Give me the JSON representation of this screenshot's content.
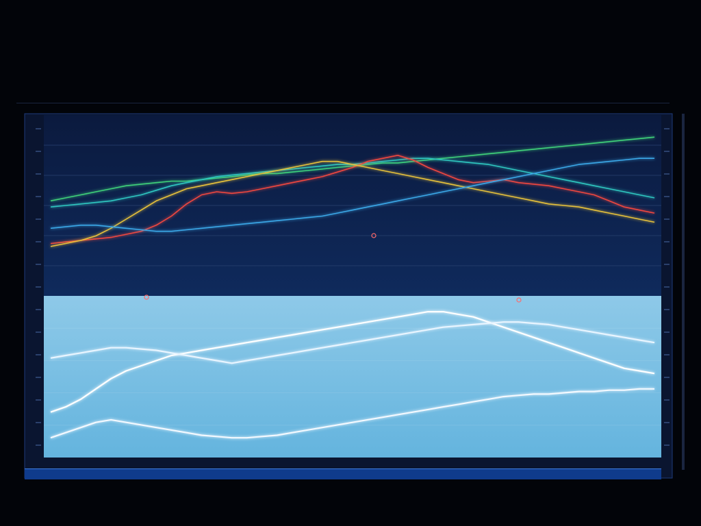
{
  "chart_data": {
    "type": "line",
    "x": [
      0,
      1,
      2,
      3,
      4,
      5,
      6,
      7,
      8,
      9,
      10,
      11,
      12,
      13,
      14,
      15,
      16,
      17,
      18,
      19,
      20,
      21,
      22,
      23,
      24,
      25,
      26,
      27,
      28,
      29,
      30,
      31,
      32,
      33,
      34,
      35,
      36,
      37,
      38,
      39,
      40
    ],
    "ylim": [
      0,
      100
    ],
    "grid": true,
    "upper_series": [
      {
        "color": "#3fd27a",
        "values": [
          58,
          60,
          62,
          64,
          66,
          68,
          69,
          70,
          71,
          71,
          72,
          73,
          74,
          75,
          76,
          76,
          77,
          78,
          79,
          80,
          81,
          82,
          83,
          83,
          84,
          85,
          86,
          87,
          88,
          89,
          90,
          91,
          92,
          93,
          94,
          95,
          96,
          97,
          98,
          99,
          100
        ]
      },
      {
        "color": "#2fc7c0",
        "values": [
          54,
          55,
          56,
          57,
          58,
          60,
          62,
          65,
          68,
          70,
          72,
          74,
          75,
          76,
          77,
          78,
          79,
          80,
          81,
          82,
          82,
          83,
          84,
          85,
          86,
          86,
          85,
          84,
          83,
          82,
          80,
          78,
          76,
          74,
          72,
          70,
          68,
          66,
          64,
          62,
          60
        ]
      },
      {
        "color": "#f0473f",
        "values": [
          30,
          31,
          32,
          33,
          34,
          36,
          38,
          42,
          48,
          56,
          62,
          64,
          63,
          64,
          66,
          68,
          70,
          72,
          74,
          77,
          80,
          84,
          86,
          88,
          85,
          80,
          76,
          72,
          70,
          71,
          72,
          70,
          69,
          68,
          66,
          64,
          62,
          58,
          54,
          52,
          50
        ]
      },
      {
        "color": "#e8c23a",
        "values": [
          28,
          30,
          32,
          35,
          40,
          46,
          52,
          58,
          62,
          66,
          68,
          70,
          72,
          74,
          76,
          78,
          80,
          82,
          84,
          84,
          82,
          80,
          78,
          76,
          74,
          72,
          70,
          68,
          66,
          64,
          62,
          60,
          58,
          56,
          55,
          54,
          52,
          50,
          48,
          46,
          44
        ]
      },
      {
        "color": "#3aa8e8",
        "values": [
          40,
          41,
          42,
          42,
          41,
          40,
          39,
          38,
          38,
          39,
          40,
          41,
          42,
          43,
          44,
          45,
          46,
          47,
          48,
          50,
          52,
          54,
          56,
          58,
          60,
          62,
          64,
          66,
          68,
          70,
          72,
          74,
          76,
          78,
          80,
          82,
          83,
          84,
          85,
          86,
          86
        ]
      }
    ],
    "lower_series": [
      {
        "color": "#ffffff",
        "values": [
          30,
          34,
          40,
          48,
          56,
          62,
          66,
          70,
          74,
          76,
          78,
          80,
          82,
          84,
          86,
          88,
          90,
          92,
          94,
          96,
          98,
          100,
          102,
          104,
          106,
          108,
          108,
          106,
          104,
          100,
          96,
          92,
          88,
          84,
          80,
          76,
          72,
          68,
          64,
          62,
          60
        ]
      },
      {
        "color": "#e9f5ff",
        "values": [
          72,
          74,
          76,
          78,
          80,
          80,
          79,
          78,
          76,
          74,
          72,
          70,
          68,
          70,
          72,
          74,
          76,
          78,
          80,
          82,
          84,
          86,
          88,
          90,
          92,
          94,
          96,
          97,
          98,
          99,
          100,
          100,
          99,
          98,
          96,
          94,
          92,
          90,
          88,
          86,
          84
        ]
      },
      {
        "color": "#f3f9ff",
        "values": [
          10,
          14,
          18,
          22,
          24,
          22,
          20,
          18,
          16,
          14,
          12,
          11,
          10,
          10,
          11,
          12,
          14,
          16,
          18,
          20,
          22,
          24,
          26,
          28,
          30,
          32,
          34,
          36,
          38,
          40,
          42,
          43,
          44,
          44,
          45,
          46,
          46,
          47,
          47,
          48,
          48
        ]
      }
    ]
  }
}
